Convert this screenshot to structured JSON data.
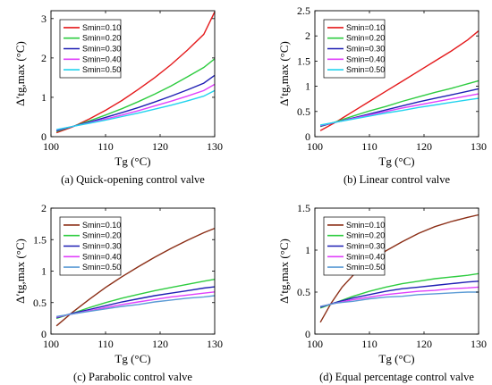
{
  "chart_data": [
    {
      "type": "line",
      "caption": "(a) Quick-opening control valve",
      "xlabel": "Tg (°C)",
      "ylabel": "Δ′tg,max (°C)",
      "xlim": [
        100,
        130
      ],
      "ylim": [
        0,
        3.2
      ],
      "xticks": [
        100,
        110,
        120,
        130
      ],
      "yticks": [
        0,
        1,
        2,
        3
      ],
      "ytick_labels": [
        "0",
        "1",
        "2",
        "3"
      ],
      "legend_position": "top-left",
      "series": [
        {
          "name": "Smin=0.10",
          "color": "#e41a1c",
          "x": [
            101,
            104,
            107,
            110,
            113,
            116,
            119,
            122,
            125,
            128,
            130
          ],
          "y": [
            0.1,
            0.25,
            0.45,
            0.67,
            0.92,
            1.2,
            1.5,
            1.83,
            2.2,
            2.6,
            3.17
          ]
        },
        {
          "name": "Smin=0.20",
          "color": "#2ecc40",
          "x": [
            101,
            104,
            107,
            110,
            113,
            116,
            119,
            122,
            125,
            128,
            130
          ],
          "y": [
            0.13,
            0.26,
            0.4,
            0.55,
            0.71,
            0.89,
            1.08,
            1.29,
            1.52,
            1.76,
            1.98
          ]
        },
        {
          "name": "Smin=0.30",
          "color": "#1f1fb4",
          "x": [
            101,
            104,
            107,
            110,
            113,
            116,
            119,
            122,
            125,
            128,
            130
          ],
          "y": [
            0.15,
            0.26,
            0.37,
            0.49,
            0.61,
            0.74,
            0.88,
            1.03,
            1.19,
            1.36,
            1.56
          ]
        },
        {
          "name": "Smin=0.40",
          "color": "#e040fb",
          "x": [
            101,
            104,
            107,
            110,
            113,
            116,
            119,
            122,
            125,
            128,
            130
          ],
          "y": [
            0.17,
            0.26,
            0.35,
            0.45,
            0.55,
            0.66,
            0.78,
            0.9,
            1.03,
            1.17,
            1.33
          ]
        },
        {
          "name": "Smin=0.50",
          "color": "#22d3ee",
          "x": [
            101,
            104,
            107,
            110,
            113,
            116,
            119,
            122,
            125,
            128,
            130
          ],
          "y": [
            0.18,
            0.26,
            0.34,
            0.42,
            0.51,
            0.6,
            0.7,
            0.8,
            0.91,
            1.03,
            1.17
          ]
        }
      ]
    },
    {
      "type": "line",
      "caption": "(b) Linear control valve",
      "xlabel": "Tg (°C)",
      "ylabel": "Δ′tg,max (°C)",
      "xlim": [
        100,
        130
      ],
      "ylim": [
        0,
        2.5
      ],
      "xticks": [
        100,
        110,
        120,
        130
      ],
      "yticks": [
        0,
        0.5,
        1,
        1.5,
        2,
        2.5
      ],
      "ytick_labels": [
        "0",
        "0.5",
        "1",
        "1.5",
        "2",
        "2.5"
      ],
      "legend_position": "top-left",
      "series": [
        {
          "name": "Smin=0.10",
          "color": "#e41a1c",
          "x": [
            101,
            104,
            107,
            110,
            113,
            116,
            119,
            122,
            125,
            128,
            130
          ],
          "y": [
            0.12,
            0.3,
            0.5,
            0.7,
            0.9,
            1.1,
            1.3,
            1.5,
            1.7,
            1.92,
            2.1
          ]
        },
        {
          "name": "Smin=0.20",
          "color": "#2ecc40",
          "x": [
            101,
            104,
            107,
            110,
            113,
            116,
            119,
            122,
            125,
            128,
            130
          ],
          "y": [
            0.2,
            0.3,
            0.41,
            0.51,
            0.6,
            0.7,
            0.79,
            0.88,
            0.96,
            1.05,
            1.11
          ]
        },
        {
          "name": "Smin=0.30",
          "color": "#1f1fb4",
          "x": [
            101,
            104,
            107,
            110,
            113,
            116,
            119,
            122,
            125,
            128,
            130
          ],
          "y": [
            0.21,
            0.29,
            0.37,
            0.45,
            0.53,
            0.61,
            0.69,
            0.76,
            0.83,
            0.9,
            0.95
          ]
        },
        {
          "name": "Smin=0.40",
          "color": "#e040fb",
          "x": [
            101,
            104,
            107,
            110,
            113,
            116,
            119,
            122,
            125,
            128,
            130
          ],
          "y": [
            0.22,
            0.29,
            0.36,
            0.43,
            0.5,
            0.57,
            0.63,
            0.69,
            0.75,
            0.81,
            0.85
          ]
        },
        {
          "name": "Smin=0.50",
          "color": "#22d3ee",
          "x": [
            101,
            104,
            107,
            110,
            113,
            116,
            119,
            122,
            125,
            128,
            130
          ],
          "y": [
            0.23,
            0.29,
            0.35,
            0.41,
            0.47,
            0.52,
            0.58,
            0.63,
            0.68,
            0.73,
            0.76
          ]
        }
      ]
    },
    {
      "type": "line",
      "caption": "(c) Parabolic control valve",
      "xlabel": "Tg (°C)",
      "ylabel": "Δ′tg,max (°C)",
      "xlim": [
        100,
        130
      ],
      "ylim": [
        0,
        2
      ],
      "xticks": [
        100,
        110,
        120,
        130
      ],
      "yticks": [
        0,
        0.5,
        1,
        1.5,
        2
      ],
      "ytick_labels": [
        "0",
        "0.5",
        "1",
        "1.5",
        "2"
      ],
      "legend_position": "top-left",
      "series": [
        {
          "name": "Smin=0.10",
          "color": "#8b2e16",
          "x": [
            101,
            104,
            107,
            110,
            113,
            116,
            119,
            122,
            125,
            128,
            130
          ],
          "y": [
            0.13,
            0.35,
            0.55,
            0.74,
            0.91,
            1.07,
            1.22,
            1.36,
            1.49,
            1.61,
            1.68
          ]
        },
        {
          "name": "Smin=0.20",
          "color": "#2ecc40",
          "x": [
            101,
            104,
            107,
            110,
            113,
            116,
            119,
            122,
            125,
            128,
            130
          ],
          "y": [
            0.25,
            0.33,
            0.42,
            0.5,
            0.57,
            0.63,
            0.69,
            0.74,
            0.79,
            0.84,
            0.87
          ]
        },
        {
          "name": "Smin=0.30",
          "color": "#1f1fb4",
          "x": [
            101,
            104,
            107,
            110,
            113,
            116,
            119,
            122,
            125,
            128,
            130
          ],
          "y": [
            0.26,
            0.33,
            0.39,
            0.45,
            0.51,
            0.56,
            0.61,
            0.65,
            0.69,
            0.73,
            0.75
          ]
        },
        {
          "name": "Smin=0.40",
          "color": "#e040fb",
          "x": [
            101,
            104,
            107,
            110,
            113,
            116,
            119,
            122,
            125,
            128,
            130
          ],
          "y": [
            0.27,
            0.32,
            0.37,
            0.42,
            0.47,
            0.51,
            0.55,
            0.59,
            0.62,
            0.65,
            0.67
          ]
        },
        {
          "name": "Smin=0.50",
          "color": "#5b9bd5",
          "x": [
            101,
            104,
            107,
            110,
            113,
            116,
            119,
            122,
            125,
            128,
            130
          ],
          "y": [
            0.28,
            0.32,
            0.36,
            0.4,
            0.44,
            0.47,
            0.51,
            0.54,
            0.57,
            0.59,
            0.61
          ]
        }
      ]
    },
    {
      "type": "line",
      "caption": "(d) Equal percentage control valve",
      "xlabel": "Tg (°C)",
      "ylabel": "Δ′tg,max (°C)",
      "xlim": [
        100,
        130
      ],
      "ylim": [
        0,
        1.5
      ],
      "xticks": [
        100,
        110,
        120,
        130
      ],
      "yticks": [
        0,
        0.5,
        1,
        1.5
      ],
      "ytick_labels": [
        "0",
        "0.5",
        "1",
        "1.5"
      ],
      "legend_position": "top-left",
      "series": [
        {
          "name": "Smin=0.10",
          "color": "#8b2e16",
          "x": [
            101,
            103,
            105,
            107,
            110,
            113,
            116,
            119,
            122,
            125,
            128,
            130
          ],
          "y": [
            0.14,
            0.37,
            0.56,
            0.7,
            0.86,
            0.99,
            1.1,
            1.2,
            1.28,
            1.34,
            1.39,
            1.42
          ]
        },
        {
          "name": "Smin=0.20",
          "color": "#2ecc40",
          "x": [
            101,
            104,
            107,
            110,
            113,
            116,
            119,
            122,
            125,
            128,
            130
          ],
          "y": [
            0.31,
            0.38,
            0.45,
            0.51,
            0.56,
            0.6,
            0.63,
            0.66,
            0.68,
            0.7,
            0.72
          ]
        },
        {
          "name": "Smin=0.30",
          "color": "#1f1fb4",
          "x": [
            101,
            104,
            107,
            110,
            113,
            116,
            119,
            122,
            125,
            128,
            130
          ],
          "y": [
            0.32,
            0.38,
            0.43,
            0.47,
            0.51,
            0.54,
            0.56,
            0.58,
            0.6,
            0.62,
            0.63
          ]
        },
        {
          "name": "Smin=0.40",
          "color": "#e040fb",
          "x": [
            101,
            104,
            107,
            110,
            113,
            116,
            119,
            122,
            125,
            128,
            130
          ],
          "y": [
            0.33,
            0.37,
            0.41,
            0.44,
            0.47,
            0.49,
            0.51,
            0.52,
            0.54,
            0.55,
            0.56
          ]
        },
        {
          "name": "Smin=0.50",
          "color": "#5b9bd5",
          "x": [
            101,
            104,
            107,
            110,
            113,
            116,
            119,
            122,
            125,
            128,
            130
          ],
          "y": [
            0.33,
            0.37,
            0.39,
            0.42,
            0.44,
            0.45,
            0.47,
            0.48,
            0.49,
            0.5,
            0.5
          ]
        }
      ]
    }
  ]
}
